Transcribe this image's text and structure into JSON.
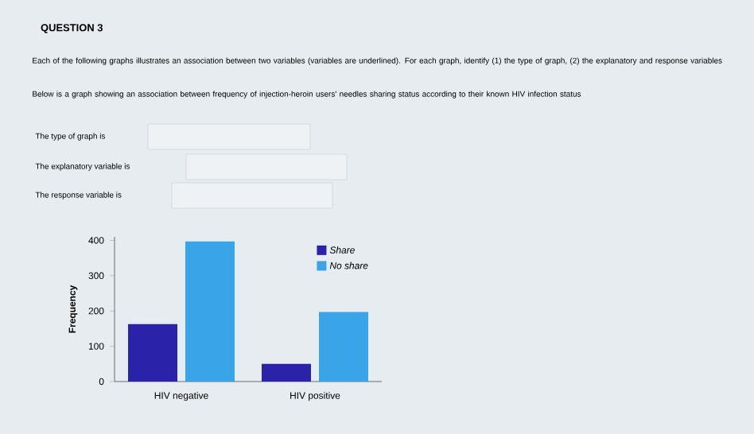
{
  "chart_data": {
    "type": "bar",
    "title": "QUESTION 3",
    "annotations": [
      "Each of the following graphs illustrates an association between two variables (variables are underlined). For each graph, identify (1) the type of graph, (2) the explanatory and response variables",
      "Below is a graph showing an association between frequency of injection-heroin users' needles sharing status according to their known HIV infection status",
      "The type of graph is",
      "The explanatory variable is",
      "The response variable is"
    ],
    "categories": [
      "HIV negative",
      "HIV positive"
    ],
    "ylabel": "Frequency",
    "series": [
      {
        "name": "Share",
        "color": "#2a22a8",
        "values": [
          163,
          50
        ]
      },
      {
        "name": "No share",
        "color": "#3aa4e8",
        "values": [
          397,
          197
        ]
      }
    ],
    "ylim": [
      0,
      410
    ],
    "yticks": [
      0,
      100,
      200,
      300,
      400
    ],
    "legend": "top right",
    "grid": false
  }
}
